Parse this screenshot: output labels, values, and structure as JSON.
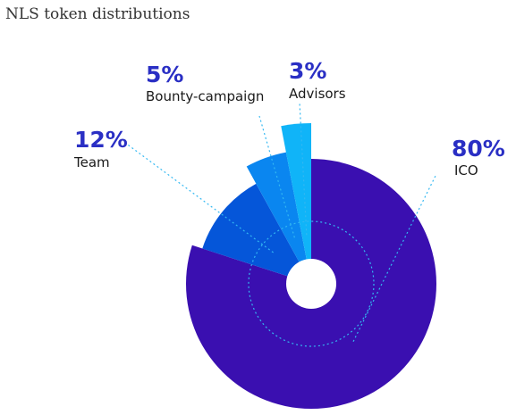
{
  "title": "NLS token distributions",
  "chart_data": {
    "type": "pie",
    "title": "NLS token distributions",
    "slices": [
      {
        "label": "ICO",
        "value": 80,
        "value_label": "80%",
        "color": "#3a0fb0"
      },
      {
        "label": "Team",
        "value": 12,
        "value_label": "12%",
        "color": "#0556d9"
      },
      {
        "label": "Bounty-campaign",
        "value": 5,
        "value_label": "5%",
        "color": "#0a86f0"
      },
      {
        "label": "Advisors",
        "value": 3,
        "value_label": "3%",
        "color": "#10b4f8"
      }
    ],
    "label_color": "#2a2fc4",
    "leader_color": "#33b8f2"
  }
}
